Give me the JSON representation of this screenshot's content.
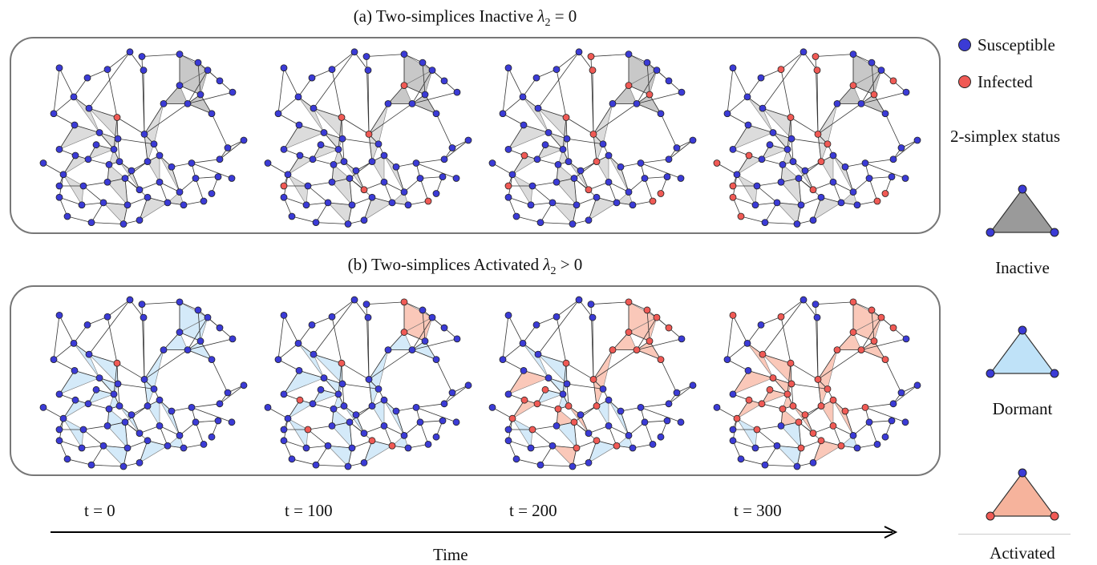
{
  "panel_a": {
    "title_prefix": "(a) Two-simplices Inactive ",
    "title_var": "λ",
    "title_sub": "2",
    "title_suffix": " = 0"
  },
  "panel_b": {
    "title_prefix": "(b) Two-simplices Activated ",
    "title_var": "λ",
    "title_sub": "2",
    "title_suffix": " > 0"
  },
  "time_labels": [
    "t = 0",
    "t = 100",
    "t = 200",
    "t = 300"
  ],
  "axis_label": "Time",
  "legend": {
    "susceptible": "Susceptible",
    "infected": "Infected",
    "status_title": "2-simplex status",
    "inactive": "Inactive",
    "dormant": "Dormant",
    "activated": "Activated"
  },
  "colors": {
    "susceptible": "#3b3bd6",
    "infected": "#f05a55",
    "inactive_fill": "#9a9a9a",
    "dormant_fill": "#9fd0f2",
    "activated_fill": "#f59a80"
  }
}
